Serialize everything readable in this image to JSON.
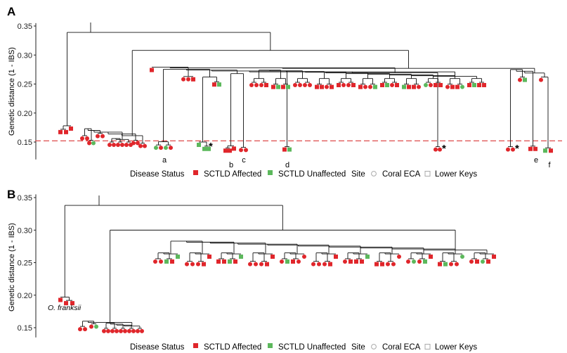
{
  "colors": {
    "affected": "#e0262b",
    "unaffected": "#5cb85c",
    "branch": "#111111",
    "threshold": "#e05a5a",
    "axis": "#222222",
    "legend_outline": "#aaaaaa"
  },
  "legend": {
    "disease_title": "Disease Status",
    "affected": "SCTLD Affected",
    "unaffected": "SCTLD Unaffected",
    "site_title": "Site",
    "coral_eca": "Coral ECA",
    "lower_keys": "Lower Keys"
  },
  "chart_data": [
    {
      "panel": "A",
      "type": "dendrogram",
      "ylabel": "Genetic distance (1 - IBS)",
      "ylim": [
        0.12,
        0.355
      ],
      "yticks": [
        0.15,
        0.2,
        0.25,
        0.3,
        0.35
      ],
      "threshold": 0.152,
      "legend_position": "bottom",
      "clade_labels": [
        "a",
        "b",
        "c",
        "d",
        "e",
        "f"
      ],
      "asterisks": 3,
      "tips_shown": 101
    },
    {
      "panel": "B",
      "type": "dendrogram",
      "ylabel": "Genetic distance (1 - IBS)",
      "ylim": [
        0.135,
        0.355
      ],
      "yticks": [
        0.15,
        0.2,
        0.25,
        0.3,
        0.35
      ],
      "outgroup_label": "O. franksii",
      "legend_position": "bottom",
      "tips_shown": 101
    }
  ]
}
